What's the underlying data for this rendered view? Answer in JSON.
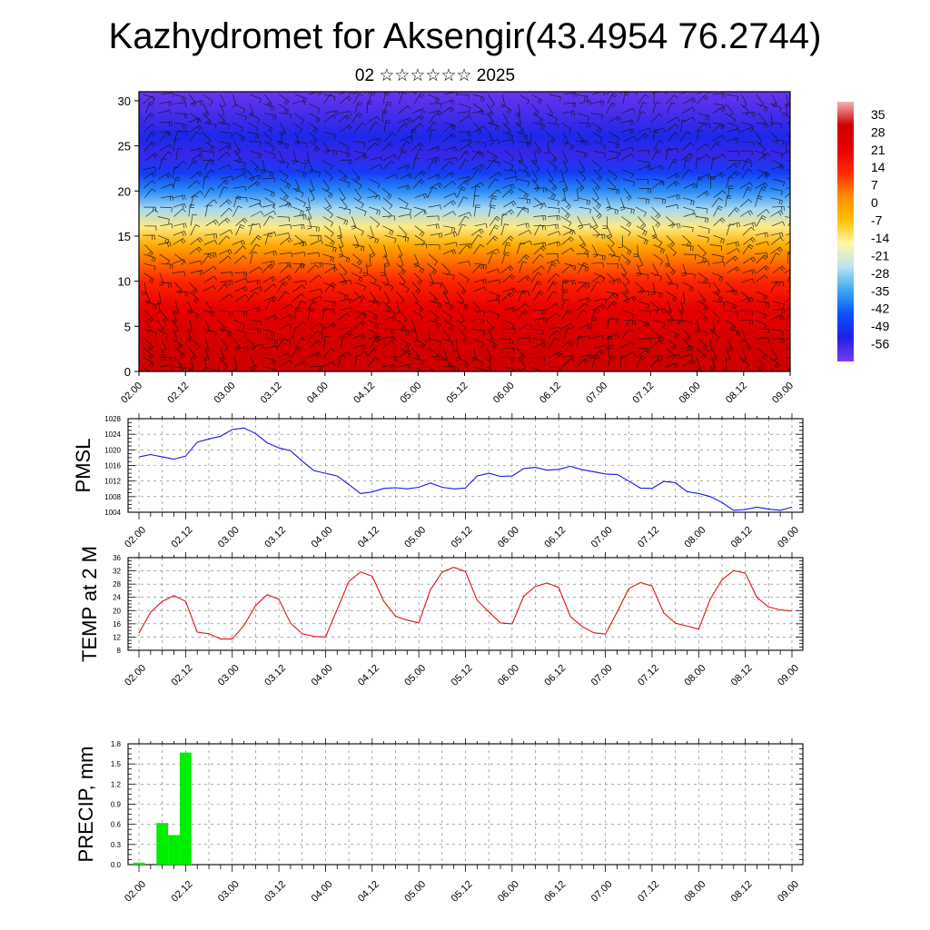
{
  "header": {
    "title": "Kazhydromet for Aksengir(43.4954 76.2744)",
    "subtitle": "02 ☆☆☆☆☆☆ 2025"
  },
  "time_labels": [
    "02.00",
    "02.12",
    "03.00",
    "03.12",
    "04.00",
    "04.12",
    "05.00",
    "05.12",
    "06.00",
    "06.12",
    "07.00",
    "07.12",
    "08.00",
    "08.12",
    "09.00"
  ],
  "chart_data": [
    {
      "type": "heatmap",
      "yticks": [
        0,
        5,
        10,
        15,
        20,
        25,
        30
      ],
      "ylim": [
        0,
        31
      ],
      "colorbar": {
        "labels": [
          "35",
          "28",
          "21",
          "14",
          "7",
          "0",
          "-7",
          "-14",
          "-21",
          "-28",
          "-35",
          "-42",
          "-49",
          "-56"
        ],
        "range": [
          -63,
          40
        ],
        "colors": [
          "#7a3cf0",
          "#2020e6",
          "#0a50ff",
          "#3aa8f0",
          "#b8e4f0",
          "#fff6a8",
          "#ffc000",
          "#ff8c00",
          "#ff2a00",
          "#e60000",
          "#cc0000",
          "#f4b4b4"
        ]
      },
      "layers": [
        {
          "level": 1,
          "temp": 30
        },
        {
          "level": 4,
          "temp": 27
        },
        {
          "level": 7,
          "temp": 21
        },
        {
          "level": 10,
          "temp": 13
        },
        {
          "level": 12,
          "temp": 6
        },
        {
          "level": 14,
          "temp": -3
        },
        {
          "level": 16,
          "temp": -14
        },
        {
          "level": 18,
          "temp": -27
        },
        {
          "level": 20,
          "temp": -38
        },
        {
          "level": 22,
          "temp": -48
        },
        {
          "level": 24,
          "temp": -56
        },
        {
          "level": 26,
          "temp": -52
        },
        {
          "level": 28,
          "temp": -57
        },
        {
          "level": 31,
          "temp": -61
        }
      ]
    },
    {
      "type": "line",
      "ylabel": "PMSL",
      "ylim": [
        1004,
        1028
      ],
      "yticks": [
        1004,
        1008,
        1012,
        1016,
        1020,
        1024,
        1028
      ],
      "color": "#1515e8",
      "values": [
        1018.2,
        1018.8,
        1018.2,
        1017.6,
        1018.4,
        1022.0,
        1022.8,
        1023.5,
        1025.2,
        1025.6,
        1024.2,
        1021.8,
        1020.5,
        1019.8,
        1017.1,
        1014.7,
        1014.0,
        1013.3,
        1011.1,
        1008.8,
        1009.2,
        1010.1,
        1010.3,
        1010.0,
        1010.4,
        1011.5,
        1010.4,
        1010.0,
        1010.2,
        1013.3,
        1014.0,
        1013.2,
        1013.3,
        1015.2,
        1015.5,
        1014.8,
        1015.0,
        1015.8,
        1014.9,
        1014.4,
        1013.8,
        1013.7,
        1012.0,
        1010.2,
        1010.1,
        1011.9,
        1011.6,
        1009.3,
        1008.8,
        1008.0,
        1006.5,
        1004.5,
        1004.7,
        1005.3,
        1004.8,
        1004.5,
        1005.3
      ]
    },
    {
      "type": "line",
      "ylabel": "TEMP at 2 M",
      "ylim": [
        8,
        36
      ],
      "yticks": [
        8,
        12,
        16,
        20,
        24,
        28,
        32,
        36
      ],
      "color": "#e01010",
      "values": [
        13.2,
        19.5,
        22.8,
        24.5,
        22.8,
        13.5,
        13.0,
        11.4,
        11.4,
        15.5,
        21.5,
        24.8,
        23.4,
        16.2,
        13.0,
        12.2,
        12.0,
        20.4,
        28.8,
        31.7,
        30.4,
        22.8,
        18.3,
        17.1,
        16.3,
        26.3,
        31.6,
        33.1,
        31.8,
        23.1,
        19.6,
        16.3,
        16.0,
        24.4,
        27.3,
        28.3,
        27.0,
        18.2,
        15.2,
        13.3,
        12.9,
        19.5,
        26.6,
        28.5,
        27.4,
        19.3,
        16.2,
        15.3,
        14.4,
        23.5,
        29.3,
        32.1,
        31.3,
        23.9,
        21.1,
        20.2,
        19.9
      ]
    },
    {
      "type": "bar",
      "ylabel": "PRECIP, mm",
      "ylim": [
        0,
        1.8
      ],
      "ytick_labels": [
        "0.0",
        "0.3",
        "0.6",
        "0.9",
        "1.2",
        "1.5",
        "1.8"
      ],
      "color": "#00ee00",
      "values": [
        0.03,
        0,
        0.62,
        0.44,
        1.67,
        0,
        0,
        0,
        0,
        0,
        0,
        0,
        0,
        0,
        0,
        0,
        0,
        0,
        0,
        0,
        0,
        0,
        0,
        0,
        0,
        0,
        0,
        0,
        0,
        0,
        0,
        0,
        0,
        0,
        0,
        0,
        0,
        0,
        0,
        0,
        0,
        0,
        0,
        0,
        0,
        0,
        0,
        0,
        0,
        0,
        0,
        0,
        0,
        0,
        0,
        0,
        0
      ]
    }
  ]
}
